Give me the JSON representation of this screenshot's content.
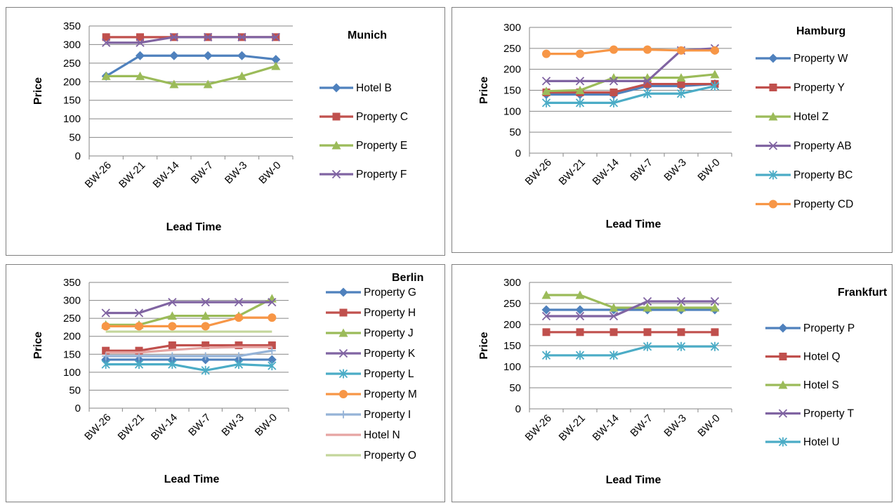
{
  "chart_data": [
    {
      "type": "line",
      "title": "Munich",
      "xlabel": "Lead Time",
      "ylabel": "Price",
      "categories": [
        "BW-26",
        "BW-21",
        "BW-14",
        "BW-7",
        "BW-3",
        "BW-0"
      ],
      "ylim": [
        0,
        350
      ],
      "yticks": [
        0,
        50,
        100,
        150,
        200,
        250,
        300,
        350
      ],
      "grid": true,
      "legend": "right",
      "series": [
        {
          "name": "Hotel B",
          "color": "#4F81BD",
          "marker": "diamond",
          "values": [
            215,
            270,
            270,
            270,
            270,
            260
          ]
        },
        {
          "name": "Property C",
          "color": "#C0504D",
          "marker": "square",
          "values": [
            320,
            320,
            320,
            320,
            320,
            320
          ]
        },
        {
          "name": "Property E",
          "color": "#9BBB59",
          "marker": "triangle",
          "values": [
            215,
            215,
            193,
            193,
            215,
            242
          ]
        },
        {
          "name": "Property F",
          "color": "#8064A2",
          "marker": "x",
          "values": [
            305,
            305,
            320,
            320,
            320,
            320
          ]
        }
      ]
    },
    {
      "type": "line",
      "title": "Hamburg",
      "xlabel": "Lead Time",
      "ylabel": "Price",
      "categories": [
        "BW-26",
        "BW-21",
        "BW-14",
        "BW-7",
        "BW-3",
        "BW-0"
      ],
      "ylim": [
        0,
        300
      ],
      "yticks": [
        0,
        50,
        100,
        150,
        200,
        250,
        300
      ],
      "grid": true,
      "legend": "right",
      "series": [
        {
          "name": "Property W",
          "color": "#4F81BD",
          "marker": "diamond",
          "values": [
            140,
            140,
            140,
            160,
            160,
            165
          ]
        },
        {
          "name": "Property Y",
          "color": "#C0504D",
          "marker": "square",
          "values": [
            145,
            145,
            145,
            165,
            165,
            165
          ]
        },
        {
          "name": "Hotel Z",
          "color": "#9BBB59",
          "marker": "triangle",
          "values": [
            148,
            150,
            180,
            180,
            180,
            188
          ]
        },
        {
          "name": "Property AB",
          "color": "#8064A2",
          "marker": "x",
          "values": [
            172,
            172,
            172,
            172,
            245,
            250
          ]
        },
        {
          "name": "Property BC",
          "color": "#4BACC6",
          "marker": "star",
          "values": [
            120,
            120,
            120,
            142,
            142,
            160
          ]
        },
        {
          "name": "Property CD",
          "color": "#F79646",
          "marker": "circle",
          "values": [
            237,
            237,
            247,
            247,
            245,
            245
          ]
        }
      ]
    },
    {
      "type": "line",
      "title": "Berlin",
      "xlabel": "Lead Time",
      "ylabel": "Price",
      "categories": [
        "BW-26",
        "BW-21",
        "BW-14",
        "BW-7",
        "BW-3",
        "BW-0"
      ],
      "ylim": [
        0,
        350
      ],
      "yticks": [
        0,
        50,
        100,
        150,
        200,
        250,
        300,
        350
      ],
      "grid": true,
      "legend": "right",
      "series": [
        {
          "name": "Property G",
          "color": "#4F81BD",
          "marker": "diamond",
          "values": [
            135,
            135,
            135,
            135,
            135,
            135
          ]
        },
        {
          "name": "Property H",
          "color": "#C0504D",
          "marker": "square",
          "values": [
            160,
            160,
            175,
            175,
            175,
            175
          ]
        },
        {
          "name": "Property J",
          "color": "#9BBB59",
          "marker": "triangle",
          "values": [
            232,
            232,
            257,
            257,
            257,
            305
          ]
        },
        {
          "name": "Property K",
          "color": "#8064A2",
          "marker": "x",
          "values": [
            265,
            265,
            295,
            295,
            295,
            295
          ]
        },
        {
          "name": "Property L",
          "color": "#4BACC6",
          "marker": "star",
          "values": [
            122,
            122,
            122,
            105,
            122,
            118
          ]
        },
        {
          "name": "Property M",
          "color": "#F79646",
          "marker": "circle",
          "values": [
            228,
            228,
            228,
            228,
            252,
            252
          ]
        },
        {
          "name": "Property I",
          "color": "#95B3D7",
          "marker": "plus",
          "values": [
            145,
            145,
            145,
            145,
            145,
            160
          ]
        },
        {
          "name": "Hotel N",
          "color": "#E6A4A2",
          "marker": "none",
          "values": [
            155,
            155,
            162,
            168,
            170,
            170
          ]
        },
        {
          "name": "Property O",
          "color": "#C3D69B",
          "marker": "none",
          "values": [
            213,
            213,
            213,
            213,
            213,
            213
          ]
        }
      ]
    },
    {
      "type": "line",
      "title": "Frankfurt",
      "xlabel": "Lead Time",
      "ylabel": "Price",
      "categories": [
        "BW-26",
        "BW-21",
        "BW-14",
        "BW-7",
        "BW-3",
        "BW-0"
      ],
      "ylim": [
        0,
        300
      ],
      "yticks": [
        0,
        50,
        100,
        150,
        200,
        250,
        300
      ],
      "grid": true,
      "legend": "right",
      "series": [
        {
          "name": "Property P",
          "color": "#4F81BD",
          "marker": "diamond",
          "values": [
            235,
            235,
            235,
            235,
            235,
            235
          ]
        },
        {
          "name": "Hotel Q",
          "color": "#C0504D",
          "marker": "square",
          "values": [
            182,
            182,
            182,
            182,
            182,
            182
          ]
        },
        {
          "name": "Hotel S",
          "color": "#9BBB59",
          "marker": "triangle",
          "values": [
            270,
            270,
            240,
            240,
            240,
            240
          ]
        },
        {
          "name": "Property T",
          "color": "#8064A2",
          "marker": "x",
          "values": [
            220,
            220,
            220,
            255,
            255,
            255
          ]
        },
        {
          "name": "Hotel U",
          "color": "#4BACC6",
          "marker": "star",
          "values": [
            127,
            127,
            127,
            148,
            148,
            148
          ]
        }
      ]
    }
  ]
}
